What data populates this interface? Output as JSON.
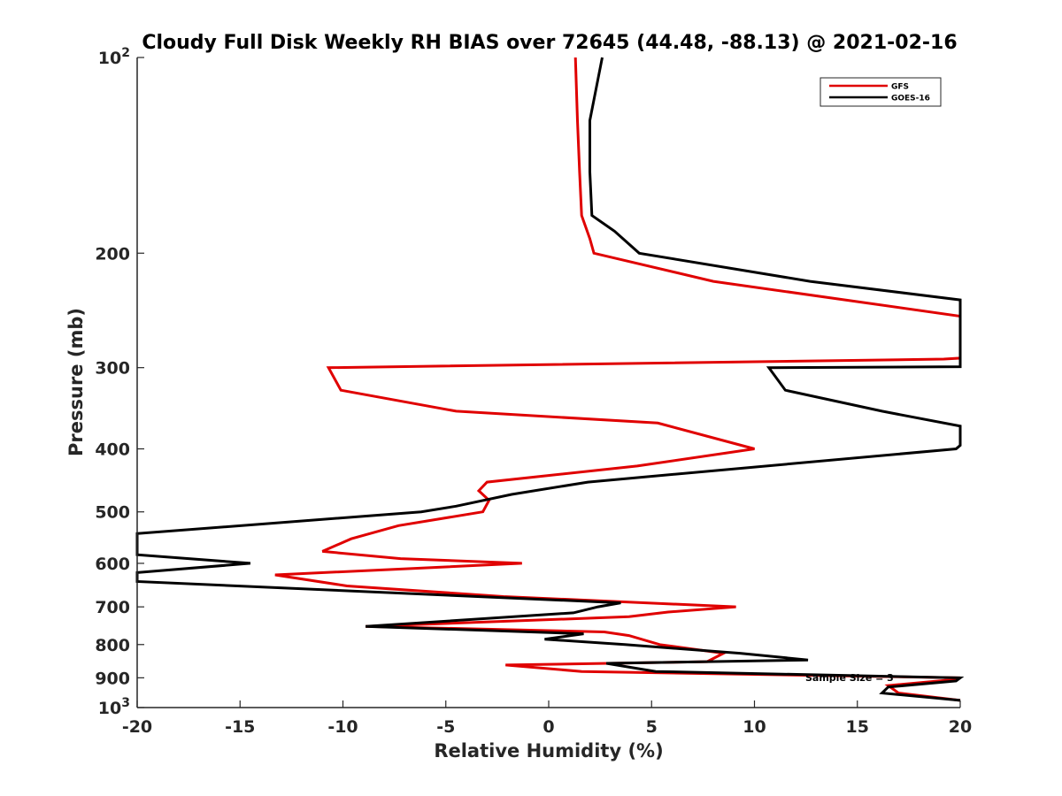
{
  "chart_data": {
    "type": "line",
    "title": "Cloudy Full Disk Weekly RH BIAS over 72645 (44.48, -88.13) @ 2021-02-16",
    "xlabel": "Relative Humidity (%)",
    "ylabel": "Pressure (mb)",
    "xlim": [
      -20,
      20
    ],
    "ylim": [
      100,
      1000
    ],
    "yscale": "log",
    "y_reversed": true,
    "x_ticks": [
      -20,
      -15,
      -10,
      -5,
      0,
      5,
      10,
      15,
      20
    ],
    "x_tick_labels": [
      "-20",
      "-15",
      "-10",
      "-5",
      "0",
      "5",
      "10",
      "15",
      "20"
    ],
    "y_ticks": [
      100,
      200,
      300,
      400,
      500,
      600,
      700,
      800,
      900,
      1000
    ],
    "y_tick_labels": [
      {
        "base": "10",
        "exp": "2"
      },
      {
        "base": "200",
        "exp": ""
      },
      {
        "base": "300",
        "exp": ""
      },
      {
        "base": "400",
        "exp": ""
      },
      {
        "base": "500",
        "exp": ""
      },
      {
        "base": "600",
        "exp": ""
      },
      {
        "base": "700",
        "exp": ""
      },
      {
        "base": "800",
        "exp": ""
      },
      {
        "base": "900",
        "exp": ""
      },
      {
        "base": "10",
        "exp": "3"
      }
    ],
    "legend_position": "top-right",
    "grid": false,
    "annotation": "Sample Size = 3",
    "series": [
      {
        "name": "GFS",
        "color": "#e00000",
        "points": [
          [
            1.3,
            100
          ],
          [
            1.4,
            125
          ],
          [
            1.5,
            150
          ],
          [
            1.6,
            175
          ],
          [
            2.0,
            190
          ],
          [
            2.2,
            200
          ],
          [
            8,
            221
          ],
          [
            20,
            250
          ],
          [
            20,
            290
          ],
          [
            19.2,
            291
          ],
          [
            -10.7,
            300
          ],
          [
            -10.1,
            325
          ],
          [
            -4.5,
            350
          ],
          [
            5.3,
            365
          ],
          [
            10,
            400
          ],
          [
            4.3,
            425
          ],
          [
            -3,
            450
          ],
          [
            -3.4,
            464
          ],
          [
            -2.9,
            480
          ],
          [
            -3.2,
            500
          ],
          [
            -7.3,
            525
          ],
          [
            -9.6,
            550
          ],
          [
            -11,
            575
          ],
          [
            -7.2,
            590
          ],
          [
            -1.3,
            600
          ],
          [
            -13.3,
            625
          ],
          [
            -9.8,
            650
          ],
          [
            -2.2,
            675
          ],
          [
            9.1,
            700
          ],
          [
            5.8,
            713
          ],
          [
            3.9,
            725
          ],
          [
            -8.9,
            750
          ],
          [
            2.7,
            765
          ],
          [
            3.9,
            775
          ],
          [
            5.4,
            800
          ],
          [
            8.5,
            825
          ],
          [
            7.7,
            850
          ],
          [
            -2.1,
            860
          ],
          [
            1.6,
            880
          ],
          [
            20,
            900
          ],
          [
            19.8,
            905
          ],
          [
            16.5,
            925
          ],
          [
            17,
            950
          ],
          [
            20,
            975
          ]
        ]
      },
      {
        "name": "GOES-16",
        "color": "#000000",
        "points": [
          [
            2.6,
            100
          ],
          [
            2.0,
            125
          ],
          [
            2.0,
            150
          ],
          [
            2.1,
            175
          ],
          [
            3.2,
            185
          ],
          [
            4.4,
            200
          ],
          [
            12.7,
            221
          ],
          [
            20,
            236
          ],
          [
            20,
            299
          ],
          [
            10.7,
            300
          ],
          [
            11.5,
            325
          ],
          [
            16.2,
            350
          ],
          [
            20,
            369
          ],
          [
            20,
            395
          ],
          [
            19.8,
            400
          ],
          [
            1.9,
            450
          ],
          [
            -1.8,
            470
          ],
          [
            -4.5,
            490
          ],
          [
            -6.2,
            500
          ],
          [
            -20,
            540
          ],
          [
            -20,
            582
          ],
          [
            -14.5,
            600
          ],
          [
            -20,
            620
          ],
          [
            -20,
            640
          ],
          [
            3.5,
            690
          ],
          [
            2.4,
            700
          ],
          [
            1.2,
            715
          ],
          [
            -8.9,
            750
          ],
          [
            1.7,
            770
          ],
          [
            -0.2,
            785
          ],
          [
            3.7,
            800
          ],
          [
            9.3,
            825
          ],
          [
            12.6,
            845
          ],
          [
            2.8,
            855
          ],
          [
            5.2,
            880
          ],
          [
            20,
            900
          ],
          [
            19.8,
            910
          ],
          [
            16.5,
            930
          ],
          [
            16.2,
            950
          ],
          [
            20,
            975
          ]
        ]
      }
    ]
  }
}
